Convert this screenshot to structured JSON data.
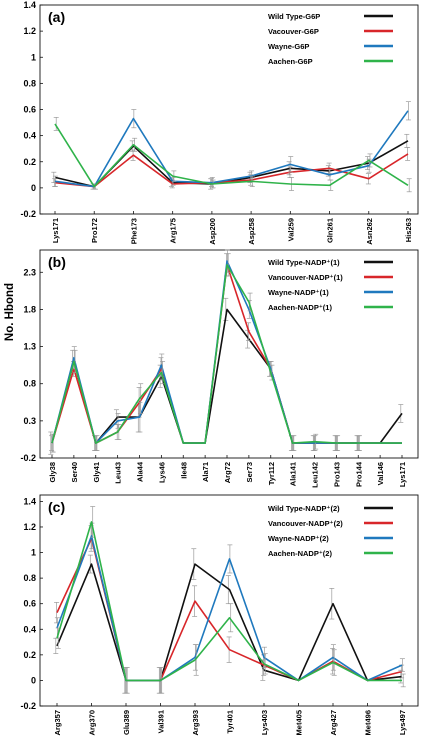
{
  "ylabel": "No. Hbond",
  "colors": {
    "wild": "#111111",
    "vancouver": "#d8262a",
    "wayne": "#1f79be",
    "aachen": "#2fb34a",
    "error": "#9a9a9a"
  },
  "chart_data": [
    {
      "type": "line",
      "title": "(a)",
      "categories": [
        "Lys171",
        "Pro172",
        "Phe173",
        "Arg175",
        "Asp200",
        "Asp258",
        "Val259",
        "Gln261",
        "Asn262",
        "His263"
      ],
      "yticks": [
        "-0.2",
        "0",
        "0.2",
        "0.4",
        "0.6",
        "0.8",
        "1",
        "1.2",
        "1.4"
      ],
      "ylim": [
        -0.2,
        1.4
      ],
      "legend_position": "top-right",
      "series": [
        {
          "name": "Wild Type-G6P",
          "color": "#111111",
          "values": [
            0.08,
            0.01,
            0.32,
            0.04,
            0.03,
            0.08,
            0.15,
            0.13,
            0.19,
            0.36
          ],
          "errors": [
            0.04,
            0.02,
            0.04,
            0.03,
            0.04,
            0.04,
            0.05,
            0.04,
            0.05,
            0.05
          ]
        },
        {
          "name": "Vacouver-G6P",
          "color": "#d8262a",
          "values": [
            0.04,
            0.01,
            0.25,
            0.03,
            0.04,
            0.06,
            0.12,
            0.15,
            0.07,
            0.26
          ],
          "errors": [
            0.03,
            0.02,
            0.04,
            0.03,
            0.03,
            0.04,
            0.04,
            0.04,
            0.04,
            0.05
          ]
        },
        {
          "name": "Wayne-G6P",
          "color": "#1f79be",
          "values": [
            0.05,
            0.01,
            0.53,
            0.05,
            0.04,
            0.09,
            0.18,
            0.1,
            0.17,
            0.59
          ],
          "errors": [
            0.04,
            0.02,
            0.07,
            0.03,
            0.04,
            0.04,
            0.06,
            0.04,
            0.05,
            0.07
          ]
        },
        {
          "name": "Aachen-G6P",
          "color": "#2fb34a",
          "values": [
            0.49,
            0.01,
            0.33,
            0.09,
            0.03,
            0.05,
            0.03,
            0.02,
            0.21,
            0.02
          ],
          "errors": [
            0.05,
            0.02,
            0.05,
            0.04,
            0.03,
            0.04,
            0.05,
            0.04,
            0.05,
            0.05
          ]
        }
      ]
    },
    {
      "type": "line",
      "title": "(b)",
      "categories": [
        "Gly38",
        "Ser40",
        "Gly41",
        "Leu43",
        "Ala44",
        "Lys46",
        "Ile48",
        "Ala71",
        "Arg72",
        "Ser73",
        "Tyr112",
        "Ala141",
        "Leu142",
        "Pro143",
        "Pro144",
        "Val146",
        "Lys171"
      ],
      "yticks": [
        "-0.2",
        "0.3",
        "0.8",
        "1.3",
        "1.8",
        "2.3"
      ],
      "ylim": [
        -0.2,
        2.6
      ],
      "legend_position": "top-right",
      "series": [
        {
          "name": "Wild Type-NADP⁺(1)",
          "color": "#111111",
          "values": [
            0,
            1.1,
            0,
            0.35,
            0.35,
            0.9,
            0,
            0,
            1.8,
            1.4,
            1.0,
            0,
            0,
            0,
            0,
            0,
            0.4
          ],
          "errors": [
            0.15,
            0.15,
            0.1,
            0.1,
            0.2,
            0.15,
            0,
            0,
            0.15,
            0.12,
            0.1,
            0.1,
            0.1,
            0.1,
            0.1,
            0,
            0.12
          ]
        },
        {
          "name": "Vancouver-NADP⁺(1)",
          "color": "#d8262a",
          "values": [
            0,
            1.0,
            0,
            0.15,
            0.55,
            1.0,
            0,
            0,
            2.4,
            1.5,
            1.0,
            0,
            0,
            0,
            0,
            0,
            0
          ],
          "errors": [
            0.1,
            0.1,
            0.1,
            0.1,
            0.2,
            0.15,
            0,
            0,
            0.15,
            0.12,
            0.1,
            0.1,
            0.1,
            0.1,
            0.1,
            0,
            0
          ]
        },
        {
          "name": "Wayne-NADP⁺(1)",
          "color": "#1f79be",
          "values": [
            0,
            1.15,
            0,
            0.3,
            0.35,
            1.05,
            0,
            0,
            2.45,
            1.8,
            1.0,
            0,
            0,
            0,
            0,
            0,
            0
          ],
          "errors": [
            0.12,
            0.15,
            0.1,
            0.1,
            0.2,
            0.15,
            0,
            0,
            0.15,
            0.12,
            0.1,
            0.1,
            0.1,
            0.1,
            0.1,
            0,
            0
          ]
        },
        {
          "name": "Aachen-NADP⁺(1)",
          "color": "#2fb34a",
          "values": [
            0,
            1.1,
            0,
            0.15,
            0.6,
            0.95,
            0,
            0,
            2.4,
            1.9,
            0.95,
            0,
            0.02,
            0,
            0,
            0,
            0
          ],
          "errors": [
            0.12,
            0.15,
            0.1,
            0.1,
            0.2,
            0.15,
            0,
            0,
            0.15,
            0.12,
            0.1,
            0.1,
            0.1,
            0.1,
            0.1,
            0,
            0
          ]
        }
      ]
    },
    {
      "type": "line",
      "title": "(c)",
      "categories": [
        "Arg357",
        "Arg370",
        "Glu389",
        "Val391",
        "Arg393",
        "Tyr401",
        "Lys403",
        "Met405",
        "Arg427",
        "Met496",
        "Lys497"
      ],
      "yticks": [
        "-0.2",
        "0",
        "0.2",
        "0.4",
        "0.6",
        "0.8",
        "1",
        "1.2",
        "1.4"
      ],
      "ylim": [
        -0.2,
        1.45
      ],
      "legend_position": "top-right",
      "series": [
        {
          "name": "Wild Type-NADP⁺(2)",
          "color": "#111111",
          "values": [
            0.27,
            0.91,
            0,
            0,
            0.91,
            0.71,
            0.08,
            0,
            0.6,
            0,
            0.03
          ],
          "errors": [
            0.06,
            0.07,
            0.1,
            0.1,
            0.12,
            0.11,
            0.08,
            0,
            0.12,
            0,
            0.05
          ]
        },
        {
          "name": "Vancouver-NADP⁺(2)",
          "color": "#d8262a",
          "values": [
            0.53,
            1.11,
            0,
            0,
            0.62,
            0.24,
            0.12,
            0,
            0.15,
            0,
            0.07
          ],
          "errors": [
            0.08,
            0.1,
            0.1,
            0.1,
            0.12,
            0.1,
            0.08,
            0,
            0.1,
            0,
            0.05
          ]
        },
        {
          "name": "Wayne-NADP⁺(2)",
          "color": "#1f79be",
          "values": [
            0.41,
            1.13,
            0,
            0,
            0.18,
            0.95,
            0.18,
            0,
            0.18,
            0,
            0.12
          ],
          "errors": [
            0.08,
            0.1,
            0.1,
            0.1,
            0.1,
            0.11,
            0.08,
            0,
            0.1,
            0,
            0.05
          ]
        },
        {
          "name": "Aachen-NADP⁺(2)",
          "color": "#2fb34a",
          "values": [
            0.33,
            1.24,
            0,
            0,
            0.16,
            0.49,
            0.13,
            0,
            0.14,
            0,
            0
          ],
          "errors": [
            0.08,
            0.12,
            0.1,
            0.1,
            0.12,
            0.11,
            0.08,
            0,
            0.1,
            0,
            0.05
          ]
        }
      ]
    }
  ]
}
